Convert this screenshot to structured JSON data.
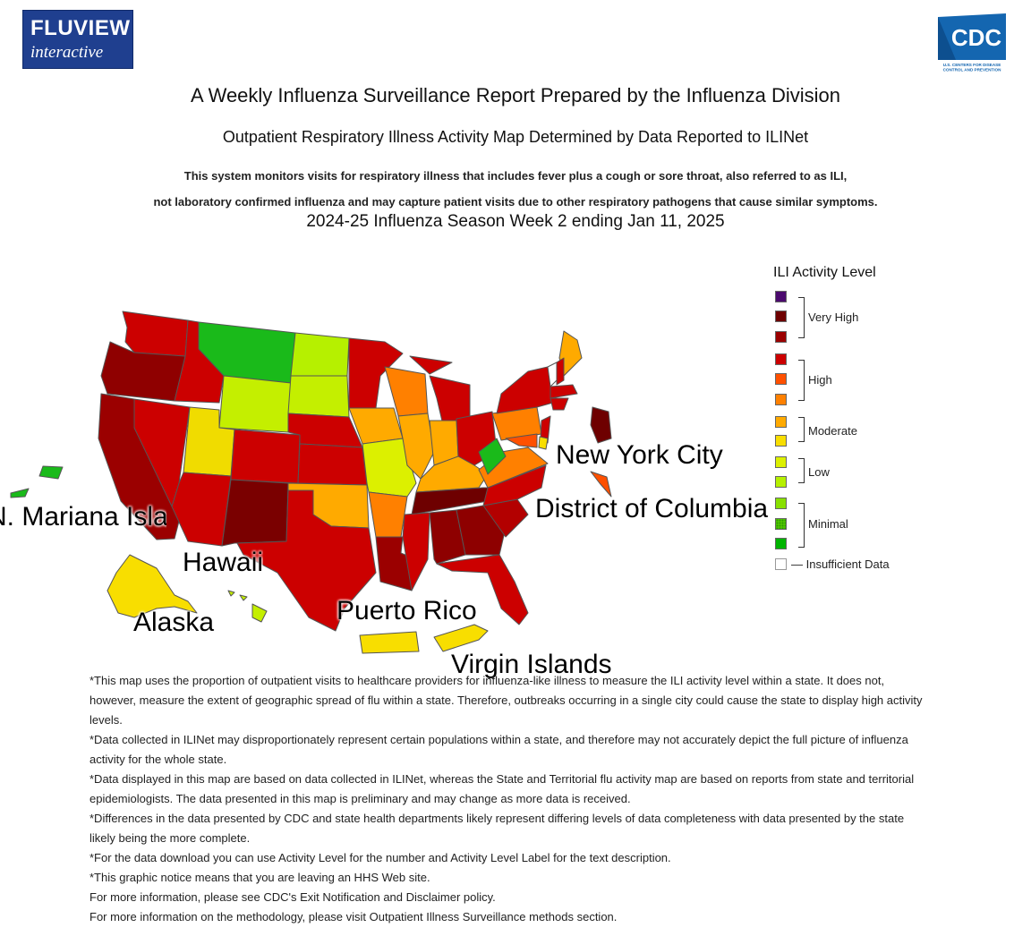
{
  "header": {
    "fluview_logo_line1": "FLUVIEW",
    "fluview_logo_line2": "interactive",
    "cdc_logo_text": "CDC",
    "cdc_logo_sub1": "U.S. CENTERS FOR DISEASE",
    "cdc_logo_sub2": "CONTROL AND PREVENTION"
  },
  "titles": {
    "main": "A Weekly Influenza Surveillance Report Prepared by the Influenza Division",
    "sub": "Outpatient Respiratory Illness Activity Map Determined by Data Reported to ILINet",
    "desc_line1": "This system monitors visits for respiratory illness that includes fever plus a cough or sore throat, also referred to as ILI,",
    "desc_line2": "not laboratory confirmed influenza and may capture patient visits due to other respiratory pathogens that cause similar symptoms.",
    "week": "2024-25 Influenza Season Week 2 ending Jan 11, 2025"
  },
  "map_labels": {
    "nyc": "New York City",
    "dc": "District of Columbia",
    "nmi": "N. Mariana Islands",
    "hawaii": "Hawaii",
    "alaska": "Alaska",
    "pr": "Puerto Rico",
    "vi": "Virgin Islands"
  },
  "legend": {
    "title": "ILI Activity Level",
    "levels": [
      {
        "level": 13,
        "color": "#4b0a6e"
      },
      {
        "level": 12,
        "color": "#6e0000"
      },
      {
        "level": 11,
        "color": "#9b0000"
      },
      {
        "level": 10,
        "color": "#cc0000"
      },
      {
        "level": 9,
        "color": "#ff5000"
      },
      {
        "level": 8,
        "color": "#ff8000"
      },
      {
        "level": 7,
        "color": "#ffaa00"
      },
      {
        "level": 6,
        "color": "#f8de00"
      },
      {
        "level": 5,
        "color": "#dcf000"
      },
      {
        "level": 4,
        "color": "#b6f000"
      },
      {
        "level": 3,
        "color": "#88e000"
      },
      {
        "level": 2,
        "color": "#55cc00"
      },
      {
        "level": 1,
        "color": "#00b400"
      },
      {
        "level": 0,
        "color": "#ffffff"
      }
    ],
    "groups": {
      "very_high": "Very High",
      "high": "High",
      "moderate": "Moderate",
      "low": "Low",
      "minimal": "Minimal",
      "insufficient": "— Insufficient Data"
    }
  },
  "state_levels": {
    "WA": "high",
    "OR": "very_high",
    "CA": "very_high",
    "NV": "high",
    "ID": "high",
    "MT": "minimal",
    "WY": "low",
    "UT": "moderate",
    "AZ": "high",
    "CO": "high",
    "NM": "very_high",
    "ND": "low",
    "SD": "low",
    "NE": "high",
    "KS": "high",
    "OK": "moderate",
    "TX": "high",
    "MN": "high",
    "IA": "moderate",
    "MO": "low",
    "AR": "high",
    "LA": "very_high",
    "WI": "high",
    "IL": "moderate",
    "MI": "high",
    "IN": "moderate",
    "OH": "high",
    "KY": "moderate",
    "TN": "very_high",
    "MS": "high",
    "AL": "very_high",
    "GA": "very_high",
    "FL": "high",
    "SC": "very_high",
    "NC": "high",
    "VA": "high",
    "WV": "minimal",
    "PA": "high",
    "NY": "high",
    "ME": "moderate",
    "VT": "none",
    "NH": "high",
    "MA": "high",
    "CT": "high",
    "NJ": "high",
    "MD": "high",
    "DE": "moderate",
    "DC": "high",
    "AK": "moderate",
    "HI": "low",
    "PR": "moderate",
    "VI": "moderate",
    "NMI": "minimal"
  },
  "notes": [
    "*This map uses the proportion of outpatient visits to healthcare providers for influenza-like illness to measure the ILI activity level within a state. It does not, however, measure the extent of geographic spread of flu within a state. Therefore, outbreaks occurring in a single city could cause the state to display high activity levels.",
    "*Data collected in ILINet may disproportionately represent certain populations within a state, and therefore may not accurately depict the full picture of influenza activity for the whole state.",
    "*Data displayed in this map are based on data collected in ILINet, whereas the State and Territorial flu activity map are based on reports from state and territorial epidemiologists. The data presented in this map is preliminary and may change as more data is received.",
    "*Differences in the data presented by CDC and state health departments likely represent differing levels of data completeness with data presented by the state likely being the more complete.",
    "*For the data download you can use Activity Level for the number and Activity Level Label for the text description.",
    "*This graphic notice means that you are leaving an HHS Web site.",
    "For more information, please see CDC's Exit Notification and Disclaimer policy.",
    "For more information on the methodology, please visit Outpatient Illness Surveillance methods section."
  ]
}
